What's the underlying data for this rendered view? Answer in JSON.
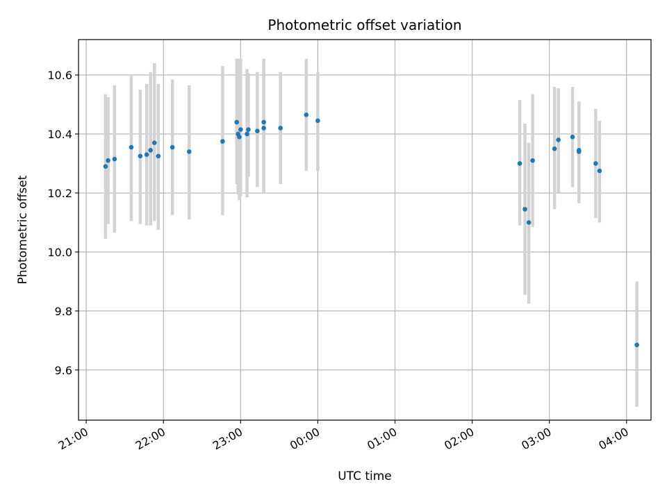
{
  "chart_data": {
    "type": "scatter",
    "title": "Photometric offset variation",
    "xlabel": "UTC time",
    "ylabel": "Photometric offset",
    "x_tick_labels": [
      "21:00",
      "22:00",
      "23:00",
      "00:00",
      "01:00",
      "02:00",
      "03:00",
      "04:00"
    ],
    "y_ticks": [
      9.6,
      9.8,
      10.0,
      10.2,
      10.4,
      10.6
    ],
    "y_tick_labels": [
      "9.6",
      "9.8",
      "10.0",
      "10.2",
      "10.4",
      "10.6"
    ],
    "xlim": [
      "20:54",
      "04:19"
    ],
    "ylim": [
      9.43,
      10.72
    ],
    "grid": true,
    "colors": {
      "points": "#1f77b4",
      "errorbars": "#d3d3d3",
      "grid": "#b0b0b0",
      "axes": "#000000"
    },
    "x": [
      "21:15",
      "21:17",
      "21:22",
      "21:35",
      "21:42",
      "21:47",
      "21:50",
      "21:53",
      "21:56",
      "22:07",
      "22:20",
      "22:46",
      "22:57",
      "22:58",
      "22:59",
      "23:00",
      "23:05",
      "23:06",
      "23:13",
      "23:18",
      "23:18",
      "23:31",
      "23:51",
      "00:00",
      "02:37",
      "02:41",
      "02:44",
      "02:47",
      "03:04",
      "03:07",
      "03:18",
      "03:23",
      "03:23",
      "03:36",
      "03:39",
      "04:08"
    ],
    "y": [
      10.29,
      10.31,
      10.315,
      10.355,
      10.325,
      10.33,
      10.345,
      10.37,
      10.325,
      10.355,
      10.34,
      10.375,
      10.44,
      10.4,
      10.39,
      10.415,
      10.4,
      10.415,
      10.41,
      10.42,
      10.44,
      10.42,
      10.465,
      10.445,
      10.3,
      10.145,
      10.1,
      10.31,
      10.35,
      10.38,
      10.39,
      10.34,
      10.345,
      10.3,
      10.275,
      9.685
    ],
    "yerr_low": [
      10.045,
      10.095,
      10.065,
      10.105,
      10.095,
      10.09,
      10.09,
      10.105,
      10.075,
      10.125,
      10.11,
      10.125,
      10.23,
      10.195,
      10.175,
      10.19,
      10.185,
      10.255,
      10.22,
      10.205,
      10.2,
      10.23,
      10.275,
      10.275,
      10.09,
      9.855,
      9.825,
      10.085,
      10.145,
      10.2,
      10.22,
      10.165,
      10.17,
      10.115,
      10.1,
      9.475
    ],
    "yerr_high": [
      10.535,
      10.525,
      10.565,
      10.6,
      10.55,
      10.57,
      10.61,
      10.64,
      10.57,
      10.585,
      10.565,
      10.63,
      10.655,
      10.655,
      10.655,
      10.655,
      10.62,
      10.605,
      10.61,
      10.645,
      10.655,
      10.61,
      10.655,
      10.61,
      10.515,
      10.435,
      10.37,
      10.535,
      10.56,
      10.555,
      10.56,
      10.51,
      10.505,
      10.485,
      10.445,
      9.9
    ]
  }
}
